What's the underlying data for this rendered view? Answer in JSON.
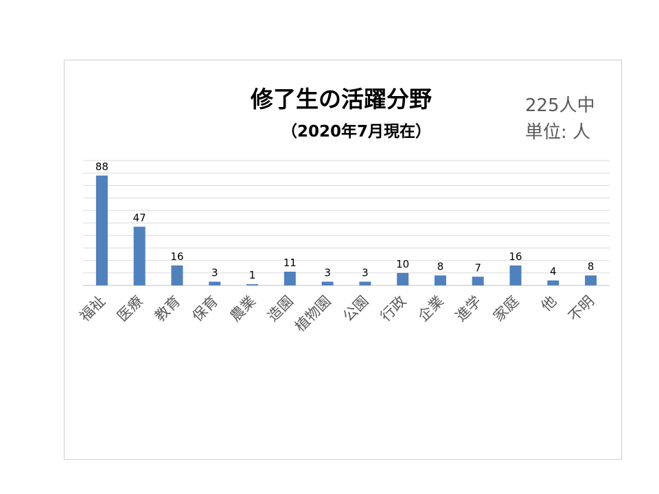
{
  "chart_data": {
    "type": "bar",
    "title": "修了生の活躍分野",
    "subtitle": "（2020年7月現在）",
    "notes": [
      "225人中",
      "単位: 人"
    ],
    "categories": [
      "福祉",
      "医療",
      "教育",
      "保育",
      "農業",
      "造園",
      "植物園",
      "公園",
      "行政",
      "企業",
      "進学",
      "家庭",
      "他",
      "不明"
    ],
    "values": [
      88,
      47,
      16,
      3,
      1,
      11,
      3,
      3,
      10,
      8,
      7,
      16,
      4,
      8
    ],
    "ylim": [
      0,
      100
    ],
    "grid": true,
    "bar_color": "#4f81bd",
    "grid_color": "#d9d9d9"
  }
}
